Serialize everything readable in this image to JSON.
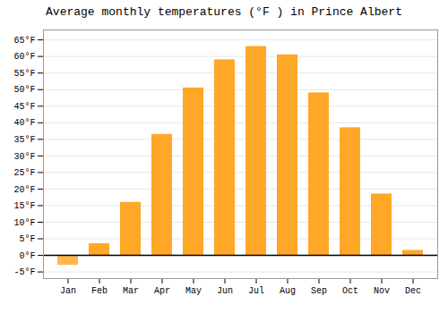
{
  "chart_data": {
    "type": "bar",
    "title": "Average monthly temperatures (°F ) in Prince Albert",
    "categories": [
      "Jan",
      "Feb",
      "Mar",
      "Apr",
      "May",
      "Jun",
      "Jul",
      "Aug",
      "Sep",
      "Oct",
      "Nov",
      "Dec"
    ],
    "values": [
      -3,
      3.5,
      16,
      36.5,
      50.5,
      59,
      63,
      60.5,
      49,
      38.5,
      18.5,
      1.5
    ],
    "colors": [
      "#FFB74D",
      "#FFA726",
      "#FFA726",
      "#FFA726",
      "#FFA726",
      "#FFA726",
      "#FFA726",
      "#FFA726",
      "#FFA726",
      "#FFA726",
      "#FFA726",
      "#FFA726"
    ],
    "ylim": [
      -7,
      68
    ],
    "yticks": [
      {
        "value": -5,
        "label": "-5°F"
      },
      {
        "value": 0,
        "label": "0°F"
      },
      {
        "value": 5,
        "label": "5°F"
      },
      {
        "value": 10,
        "label": "10°F"
      },
      {
        "value": 15,
        "label": "15°F"
      },
      {
        "value": 20,
        "label": "20°F"
      },
      {
        "value": 25,
        "label": "25°F"
      },
      {
        "value": 30,
        "label": "30°F"
      },
      {
        "value": 35,
        "label": "35°F"
      },
      {
        "value": 40,
        "label": "40°F"
      },
      {
        "value": 45,
        "label": "45°F"
      },
      {
        "value": 50,
        "label": "50°F"
      },
      {
        "value": 55,
        "label": "55°F"
      },
      {
        "value": 60,
        "label": "60°F"
      },
      {
        "value": 65,
        "label": "65°F"
      }
    ],
    "grid": true
  }
}
